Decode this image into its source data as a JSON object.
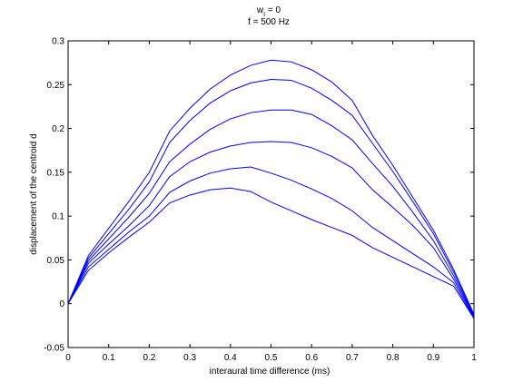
{
  "chart_data": {
    "type": "line",
    "title_line1_main": "w",
    "title_line1_sub": "I",
    "title_line1_rest": " = 0",
    "title_line2": "f = 500 Hz",
    "xlabel": "interaural time difference (ms)",
    "ylabel": "displacement of the centroid d",
    "xlim": [
      0,
      1
    ],
    "ylim": [
      -0.05,
      0.3
    ],
    "xticks": [
      0,
      0.1,
      0.2,
      0.3,
      0.4,
      0.5,
      0.6,
      0.7,
      0.8,
      0.9,
      1
    ],
    "xtick_labels": [
      "0",
      "0.1",
      "0.2",
      "0.3",
      "0.4",
      "0.5",
      "0.6",
      "0.7",
      "0.8",
      "0.9",
      "1"
    ],
    "yticks": [
      -0.05,
      0,
      0.05,
      0.1,
      0.15,
      0.2,
      0.25,
      0.3
    ],
    "ytick_labels": [
      "-0.05",
      "0",
      "0.05",
      "0.1",
      "0.15",
      "0.2",
      "0.25",
      "0.3"
    ],
    "grid": false,
    "line_color": "#0000ff",
    "x": [
      0,
      0.05,
      0.1,
      0.15,
      0.2,
      0.25,
      0.3,
      0.35,
      0.4,
      0.45,
      0.5,
      0.55,
      0.6,
      0.65,
      0.7,
      0.75,
      0.8,
      0.85,
      0.9,
      0.95,
      1
    ],
    "series": [
      {
        "values": [
          0,
          0.055,
          0.086,
          0.117,
          0.15,
          0.197,
          0.223,
          0.245,
          0.261,
          0.272,
          0.278,
          0.276,
          0.267,
          0.253,
          0.232,
          0.192,
          0.158,
          0.121,
          0.084,
          0.039,
          -0.012
        ]
      },
      {
        "values": [
          0,
          0.052,
          0.08,
          0.108,
          0.139,
          0.184,
          0.209,
          0.229,
          0.243,
          0.252,
          0.256,
          0.255,
          0.246,
          0.232,
          0.215,
          0.183,
          0.151,
          0.116,
          0.08,
          0.036,
          -0.013
        ]
      },
      {
        "values": [
          0,
          0.049,
          0.074,
          0.099,
          0.126,
          0.162,
          0.182,
          0.199,
          0.211,
          0.218,
          0.221,
          0.221,
          0.216,
          0.203,
          0.187,
          0.16,
          0.134,
          0.104,
          0.072,
          0.032,
          -0.014
        ]
      },
      {
        "values": [
          0,
          0.046,
          0.068,
          0.089,
          0.112,
          0.145,
          0.162,
          0.173,
          0.18,
          0.184,
          0.185,
          0.184,
          0.178,
          0.168,
          0.155,
          0.13,
          0.11,
          0.089,
          0.064,
          0.028,
          -0.015
        ]
      },
      {
        "values": [
          0,
          0.042,
          0.062,
          0.082,
          0.1,
          0.127,
          0.14,
          0.149,
          0.154,
          0.156,
          0.149,
          0.141,
          0.131,
          0.12,
          0.106,
          0.087,
          0.072,
          0.057,
          0.042,
          0.024,
          -0.016
        ]
      },
      {
        "values": [
          0,
          0.038,
          0.058,
          0.076,
          0.093,
          0.115,
          0.124,
          0.13,
          0.132,
          0.128,
          0.116,
          0.106,
          0.096,
          0.087,
          0.078,
          0.064,
          0.053,
          0.042,
          0.031,
          0.02,
          -0.017
        ]
      }
    ]
  }
}
